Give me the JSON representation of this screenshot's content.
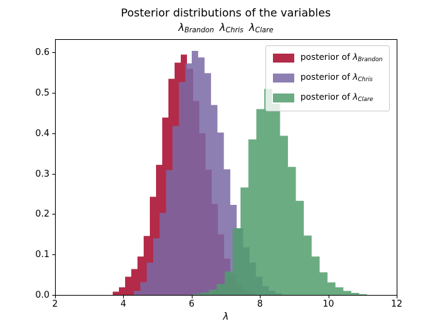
{
  "figure": {
    "background": "#ffffff",
    "text_color": "#000000"
  },
  "chart_data": {
    "type": "histogram",
    "title": "Posterior distributions of the variables",
    "subtitle_variables": [
      {
        "symbol": "λ",
        "subscript": "Brandon"
      },
      {
        "symbol": "λ",
        "subscript": "Chris"
      },
      {
        "symbol": "λ",
        "subscript": "Clare"
      }
    ],
    "xlabel": "λ",
    "ylabel": "",
    "xlim": [
      2,
      12
    ],
    "ylim": [
      0,
      0.633
    ],
    "xticks": [
      2,
      4,
      6,
      8,
      10,
      12
    ],
    "xtick_labels": [
      "2",
      "4",
      "6",
      "8",
      "10",
      "12"
    ],
    "yticks": [
      0.0,
      0.1,
      0.2,
      0.3,
      0.4,
      0.5,
      0.6
    ],
    "ytick_labels": [
      "0.0",
      "0.1",
      "0.2",
      "0.3",
      "0.4",
      "0.5",
      "0.6"
    ],
    "grid": false,
    "normalized": true,
    "legend_position": "upper right",
    "series": [
      {
        "name": "posterior of λ_Brandon",
        "legend": {
          "prefix": "posterior of ",
          "symbol": "λ",
          "subscript": "Brandon"
        },
        "color": "#A60628",
        "alpha": 0.85,
        "fill": "rgba(166,6,40,0.85)",
        "bin_start": 3.69,
        "bin_width": 0.181,
        "heights": [
          0.008,
          0.019,
          0.045,
          0.064,
          0.095,
          0.146,
          0.243,
          0.322,
          0.439,
          0.535,
          0.575,
          0.595,
          0.56,
          0.48,
          0.4,
          0.31,
          0.225,
          0.15,
          0.09,
          0.05,
          0.025,
          0.012,
          0.005
        ]
      },
      {
        "name": "posterior of λ_Chris",
        "legend": {
          "prefix": "posterior of ",
          "symbol": "λ",
          "subscript": "Chris"
        },
        "color": "#7A68A6",
        "alpha": 0.85,
        "fill": "rgba(122,104,166,0.85)",
        "bin_start": 4.31,
        "bin_width": 0.188,
        "heights": [
          0.01,
          0.032,
          0.08,
          0.14,
          0.203,
          0.309,
          0.418,
          0.527,
          0.573,
          0.604,
          0.588,
          0.549,
          0.47,
          0.402,
          0.311,
          0.223,
          0.165,
          0.118,
          0.08,
          0.045,
          0.022,
          0.01,
          0.004
        ]
      },
      {
        "name": "posterior of λ_Clare",
        "legend": {
          "prefix": "posterior of ",
          "symbol": "λ",
          "subscript": "Clare"
        },
        "color": "#519D6C",
        "alpha": 0.85,
        "fill": "rgba(81,157,108,0.85)",
        "bin_start": 6.04,
        "bin_width": 0.2315,
        "heights": [
          0.003,
          0.006,
          0.013,
          0.027,
          0.058,
          0.165,
          0.266,
          0.385,
          0.46,
          0.51,
          0.473,
          0.394,
          0.317,
          0.233,
          0.147,
          0.095,
          0.056,
          0.031,
          0.019,
          0.01,
          0.005,
          0.002
        ]
      }
    ]
  }
}
